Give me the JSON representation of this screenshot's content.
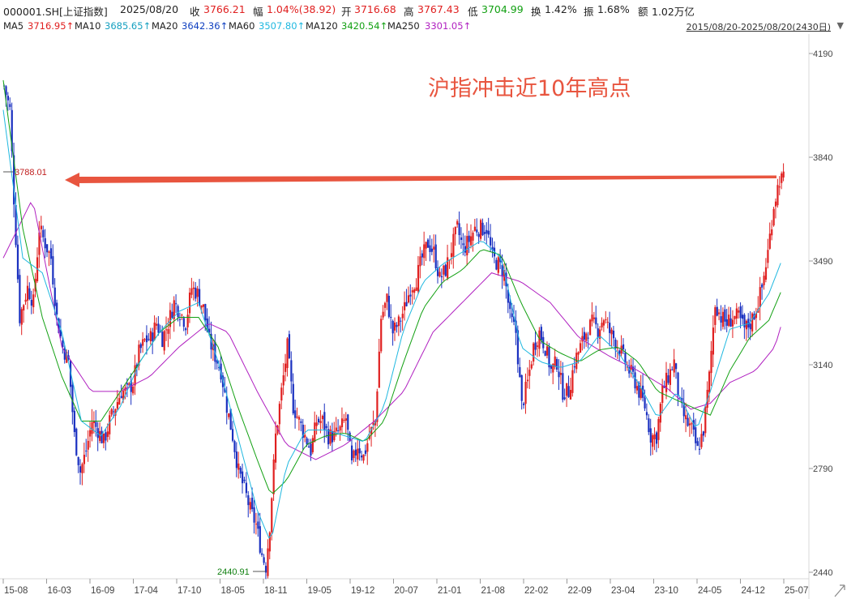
{
  "header": {
    "code": "000001.SH[上证指数]",
    "date": "2025/08/20",
    "close_label": "收",
    "close_value": "3766.21",
    "change_label": "幅",
    "change_value": "1.04%(38.92)",
    "open_label": "开",
    "open_value": "3716.68",
    "high_label": "高",
    "high_value": "3767.43",
    "low_label": "低",
    "low_value": "3704.99",
    "turnover_label": "换",
    "turnover_value": "1.42%",
    "amplitude_label": "振",
    "amplitude_value": "1.68%",
    "amount_label": "额",
    "amount_value": "1.02万亿"
  },
  "ma_bar": {
    "items": [
      {
        "label": "MA5",
        "value": "3716.95↑",
        "color": "#e02020"
      },
      {
        "label": "MA10",
        "value": "3685.65↑",
        "color": "#16b0d0"
      },
      {
        "label": "MA20",
        "value": "3642.36↑",
        "color": "#1040c0"
      },
      {
        "label": "MA60",
        "value": "3507.80↑",
        "color": "#20b8e0"
      },
      {
        "label": "MA120",
        "value": "3420.54↑",
        "color": "#12a012"
      },
      {
        "label": "MA250",
        "value": "3301.05↑",
        "color": "#b020c0"
      }
    ],
    "range_label": "2015/08/20-2025/08/20(2430日)",
    "range_icon": "triangle-down-icon"
  },
  "chart_data": {
    "type": "candlestick",
    "title": "沪指冲击近10年高点",
    "title_color": "#e8553f",
    "x_tick_labels": [
      "15-08",
      "16-03",
      "16-09",
      "17-04",
      "17-10",
      "18-05",
      "18-11",
      "19-05",
      "19-12",
      "20-07",
      "21-01",
      "21-08",
      "22-02",
      "22-09",
      "23-04",
      "23-10",
      "24-05",
      "24-12",
      "25-07"
    ],
    "y_tick_labels": [
      "4190",
      "3840",
      "3490",
      "3140",
      "2790",
      "2440"
    ],
    "y_range": [
      2440,
      4190
    ],
    "annotations": {
      "high_marker": "3788.01",
      "low_marker": "2440.91",
      "arrow_color": "#e8553f"
    },
    "up_color": "#e02020",
    "down_color": "#1a30c0",
    "ma_colors": {
      "MA60": "#20b8e0",
      "MA120": "#12a012",
      "MA250": "#b020c0"
    },
    "close_path": [
      [
        0,
        4080
      ],
      [
        3,
        4000
      ],
      [
        5,
        3700
      ],
      [
        8,
        3300
      ],
      [
        12,
        3400
      ],
      [
        15,
        3350
      ],
      [
        18,
        3600
      ],
      [
        21,
        3550
      ],
      [
        24,
        3500
      ],
      [
        27,
        3300
      ],
      [
        30,
        3200
      ],
      [
        33,
        3150
      ],
      [
        36,
        2900
      ],
      [
        39,
        2780
      ],
      [
        42,
        2850
      ],
      [
        45,
        2950
      ],
      [
        48,
        2920
      ],
      [
        51,
        2880
      ],
      [
        54,
        2950
      ],
      [
        57,
        3000
      ],
      [
        60,
        3050
      ],
      [
        63,
        3050
      ],
      [
        66,
        3080
      ],
      [
        69,
        3180
      ],
      [
        72,
        3220
      ],
      [
        75,
        3230
      ],
      [
        78,
        3280
      ],
      [
        81,
        3230
      ],
      [
        84,
        3280
      ],
      [
        87,
        3350
      ],
      [
        90,
        3320
      ],
      [
        93,
        3280
      ],
      [
        96,
        3400
      ],
      [
        99,
        3380
      ],
      [
        102,
        3330
      ],
      [
        105,
        3220
      ],
      [
        108,
        3170
      ],
      [
        111,
        3120
      ],
      [
        114,
        3000
      ],
      [
        117,
        2900
      ],
      [
        120,
        2780
      ],
      [
        123,
        2720
      ],
      [
        126,
        2650
      ],
      [
        129,
        2600
      ],
      [
        132,
        2500
      ],
      [
        134,
        2460
      ],
      [
        136,
        2600
      ],
      [
        139,
        2900
      ],
      [
        142,
        3050
      ],
      [
        145,
        3200
      ],
      [
        148,
        3000
      ],
      [
        151,
        2950
      ],
      [
        154,
        2900
      ],
      [
        157,
        2850
      ],
      [
        160,
        2950
      ],
      [
        163,
        2950
      ],
      [
        166,
        2900
      ],
      [
        169,
        2900
      ],
      [
        172,
        2920
      ],
      [
        175,
        2960
      ],
      [
        178,
        2800
      ],
      [
        181,
        2870
      ],
      [
        184,
        2830
      ],
      [
        187,
        2900
      ],
      [
        190,
        2950
      ],
      [
        193,
        3300
      ],
      [
        196,
        3360
      ],
      [
        199,
        3250
      ],
      [
        202,
        3280
      ],
      [
        205,
        3330
      ],
      [
        208,
        3400
      ],
      [
        211,
        3430
      ],
      [
        214,
        3500
      ],
      [
        217,
        3550
      ],
      [
        220,
        3520
      ],
      [
        223,
        3430
      ],
      [
        226,
        3460
      ],
      [
        229,
        3530
      ],
      [
        232,
        3600
      ],
      [
        235,
        3530
      ],
      [
        238,
        3560
      ],
      [
        241,
        3600
      ],
      [
        244,
        3600
      ],
      [
        247,
        3600
      ],
      [
        250,
        3500
      ],
      [
        253,
        3480
      ],
      [
        256,
        3450
      ],
      [
        259,
        3300
      ],
      [
        262,
        3250
      ],
      [
        265,
        3000
      ],
      [
        268,
        3080
      ],
      [
        271,
        3200
      ],
      [
        274,
        3250
      ],
      [
        277,
        3200
      ],
      [
        280,
        3120
      ],
      [
        283,
        3150
      ],
      [
        286,
        3050
      ],
      [
        289,
        3050
      ],
      [
        292,
        3150
      ],
      [
        295,
        3200
      ],
      [
        298,
        3250
      ],
      [
        301,
        3280
      ],
      [
        304,
        3260
      ],
      [
        307,
        3300
      ],
      [
        310,
        3250
      ],
      [
        313,
        3220
      ],
      [
        316,
        3180
      ],
      [
        319,
        3130
      ],
      [
        322,
        3100
      ],
      [
        325,
        3050
      ],
      [
        328,
        3000
      ],
      [
        331,
        2900
      ],
      [
        334,
        2900
      ],
      [
        337,
        3050
      ],
      [
        340,
        3100
      ],
      [
        343,
        3150
      ],
      [
        346,
        3000
      ],
      [
        349,
        2950
      ],
      [
        352,
        2920
      ],
      [
        355,
        2850
      ],
      [
        358,
        2920
      ],
      [
        361,
        3100
      ],
      [
        364,
        3350
      ],
      [
        367,
        3300
      ],
      [
        370,
        3280
      ],
      [
        373,
        3300
      ],
      [
        376,
        3300
      ],
      [
        379,
        3260
      ],
      [
        382,
        3280
      ],
      [
        385,
        3330
      ],
      [
        388,
        3400
      ],
      [
        391,
        3520
      ],
      [
        394,
        3680
      ],
      [
        397,
        3766
      ]
    ],
    "ma60_path": [
      [
        0,
        4000
      ],
      [
        10,
        3500
      ],
      [
        20,
        3450
      ],
      [
        30,
        3250
      ],
      [
        40,
        2950
      ],
      [
        50,
        2900
      ],
      [
        60,
        3000
      ],
      [
        70,
        3150
      ],
      [
        80,
        3250
      ],
      [
        90,
        3320
      ],
      [
        100,
        3350
      ],
      [
        110,
        3150
      ],
      [
        120,
        2900
      ],
      [
        130,
        2650
      ],
      [
        137,
        2540
      ],
      [
        145,
        2800
      ],
      [
        155,
        2920
      ],
      [
        165,
        2920
      ],
      [
        175,
        2900
      ],
      [
        185,
        2880
      ],
      [
        195,
        3000
      ],
      [
        205,
        3260
      ],
      [
        215,
        3420
      ],
      [
        225,
        3480
      ],
      [
        235,
        3520
      ],
      [
        245,
        3560
      ],
      [
        255,
        3500
      ],
      [
        265,
        3200
      ],
      [
        275,
        3150
      ],
      [
        285,
        3130
      ],
      [
        295,
        3150
      ],
      [
        305,
        3240
      ],
      [
        315,
        3180
      ],
      [
        325,
        3080
      ],
      [
        335,
        2960
      ],
      [
        345,
        3050
      ],
      [
        355,
        2920
      ],
      [
        362,
        3050
      ],
      [
        372,
        3260
      ],
      [
        382,
        3280
      ],
      [
        392,
        3380
      ],
      [
        399,
        3500
      ]
    ],
    "ma120_path": [
      [
        0,
        4100
      ],
      [
        10,
        3600
      ],
      [
        20,
        3300
      ],
      [
        30,
        3100
      ],
      [
        40,
        2950
      ],
      [
        50,
        2950
      ],
      [
        60,
        3050
      ],
      [
        70,
        3150
      ],
      [
        80,
        3250
      ],
      [
        90,
        3300
      ],
      [
        100,
        3300
      ],
      [
        110,
        3200
      ],
      [
        120,
        3000
      ],
      [
        130,
        2820
      ],
      [
        137,
        2700
      ],
      [
        145,
        2750
      ],
      [
        155,
        2870
      ],
      [
        165,
        2900
      ],
      [
        175,
        2910
      ],
      [
        185,
        2880
      ],
      [
        195,
        2950
      ],
      [
        205,
        3150
      ],
      [
        215,
        3330
      ],
      [
        225,
        3420
      ],
      [
        235,
        3460
      ],
      [
        245,
        3530
      ],
      [
        255,
        3510
      ],
      [
        265,
        3350
      ],
      [
        275,
        3220
      ],
      [
        285,
        3180
      ],
      [
        295,
        3150
      ],
      [
        305,
        3190
      ],
      [
        315,
        3200
      ],
      [
        325,
        3150
      ],
      [
        335,
        3050
      ],
      [
        345,
        3020
      ],
      [
        355,
        2990
      ],
      [
        362,
        2970
      ],
      [
        372,
        3120
      ],
      [
        382,
        3230
      ],
      [
        392,
        3290
      ],
      [
        399,
        3400
      ]
    ],
    "ma250_path": [
      [
        0,
        3500
      ],
      [
        15,
        3700
      ],
      [
        30,
        3200
      ],
      [
        45,
        3050
      ],
      [
        60,
        3050
      ],
      [
        75,
        3100
      ],
      [
        90,
        3200
      ],
      [
        105,
        3280
      ],
      [
        115,
        3250
      ],
      [
        130,
        3050
      ],
      [
        145,
        2870
      ],
      [
        160,
        2820
      ],
      [
        175,
        2870
      ],
      [
        190,
        2950
      ],
      [
        205,
        3050
      ],
      [
        220,
        3250
      ],
      [
        235,
        3350
      ],
      [
        250,
        3450
      ],
      [
        265,
        3420
      ],
      [
        280,
        3350
      ],
      [
        295,
        3230
      ],
      [
        310,
        3170
      ],
      [
        325,
        3120
      ],
      [
        340,
        3060
      ],
      [
        352,
        2990
      ],
      [
        362,
        3010
      ],
      [
        372,
        3080
      ],
      [
        385,
        3120
      ],
      [
        395,
        3200
      ],
      [
        399,
        3290
      ]
    ]
  }
}
